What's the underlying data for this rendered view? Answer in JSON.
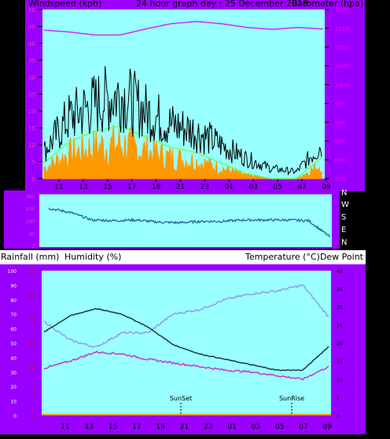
{
  "panel1": {
    "left_header": "Windspeed (kph)",
    "center_header": "24 hour graph day : 25 December 2018",
    "right_header": "Barometer (hpa)",
    "left_ticks": [
      "0",
      "5",
      "10",
      "15",
      "20",
      "25",
      "30",
      "35",
      "40",
      "45",
      "50"
    ],
    "right_ticks": [
      "975",
      "980",
      "985",
      "990",
      "995",
      "1000",
      "1005",
      "1010",
      "1015",
      "1020"
    ],
    "x_ticks": [
      "11",
      "13",
      "15",
      "17",
      "19",
      "21",
      "23",
      "01",
      "03",
      "05",
      "07",
      "09"
    ]
  },
  "panel2": {
    "left_ticks": [
      "360",
      "270",
      "180",
      "90",
      "0"
    ],
    "dir_labels": [
      "N",
      "W",
      "S",
      "E",
      "N"
    ]
  },
  "panel3": {
    "left_header": "Rainfall (mm)",
    "left_header2": "Humidity (%)",
    "right_header": "Temperature (°C)Dew Point (°C)",
    "humidity_ticks": [
      "0",
      "10",
      "20",
      "30",
      "40",
      "50",
      "60",
      "70",
      "80",
      "90",
      "100"
    ],
    "rain_ticks": [
      "0",
      "5",
      "10",
      "15",
      "20",
      "25",
      "30"
    ],
    "temp_ticks": [
      "0",
      "5",
      "10",
      "15",
      "20",
      "25",
      "30",
      "35",
      "40"
    ],
    "x_ticks": [
      "11",
      "13",
      "15",
      "17",
      "19",
      "21",
      "23",
      "01",
      "03",
      "05",
      "07",
      "09"
    ],
    "sunset_label": "SunSet",
    "sunrise_label": "SunRise"
  },
  "colors": {
    "frame": "#9900ff",
    "plot_bg": "#99ffff",
    "gust": "#000000",
    "wind_avg": "#ff9900",
    "wind_green": "#66ff66",
    "barometer": "#cc33ff",
    "direction": "#1f5f8f",
    "temperature": "#1a3a3a",
    "dew_point": "#cc33cc",
    "humidity": "#9999ee",
    "left_tick": "#ff33cc",
    "right_tick": "#ff00ff",
    "rain_tick": "#ff0000"
  },
  "chart_data": [
    {
      "type": "line",
      "title": "24 hour graph day : 25 December 2018",
      "xlabel": "",
      "ylabel": "Windspeed (kph)",
      "y2label": "Barometer (hpa)",
      "x": [
        "11",
        "13",
        "15",
        "17",
        "19",
        "21",
        "23",
        "01",
        "03",
        "05",
        "07",
        "09"
      ],
      "ylim": [
        0,
        50
      ],
      "y2lim": [
        975,
        1020
      ],
      "series": [
        {
          "name": "Windspeed gust",
          "values": [
            8,
            18,
            22,
            25,
            20,
            16,
            14,
            10,
            6,
            3,
            2,
            10
          ]
        },
        {
          "name": "Windspeed average",
          "values": [
            3,
            7,
            9,
            10,
            8,
            6,
            5,
            3,
            1,
            0,
            0,
            4
          ]
        },
        {
          "name": "Barometer (hpa)",
          "axis": "right",
          "values": [
            1014.5,
            1014,
            1013.2,
            1013.2,
            1014.8,
            1016.2,
            1016.8,
            1016.2,
            1015.2,
            1014.7,
            1015.2,
            1014.8
          ]
        }
      ]
    },
    {
      "type": "line",
      "ylabel": "Wind direction",
      "ylim": [
        0,
        360
      ],
      "x": [
        "10",
        "11",
        "13",
        "15",
        "17",
        "19",
        "21",
        "23",
        "01",
        "03",
        "05",
        "07",
        "08",
        "09"
      ],
      "series": [
        {
          "name": "Wind direction",
          "values": [
            270,
            240,
            185,
            180,
            185,
            170,
            165,
            175,
            175,
            185,
            185,
            185,
            180,
            60
          ]
        }
      ]
    },
    {
      "type": "line",
      "x": [
        "11",
        "13",
        "15",
        "17",
        "19",
        "21",
        "23",
        "01",
        "03",
        "05",
        "07",
        "09"
      ],
      "ylabel": "Humidity (%)",
      "y2label": "Temperature (°C)Dew Point (°C)",
      "ylim": [
        0,
        100
      ],
      "y2lim": [
        0,
        40
      ],
      "series": [
        {
          "name": "Temperature (°C)",
          "axis": "right",
          "values": [
            23,
            27.5,
            29.5,
            28,
            24.5,
            19.5,
            17,
            15.5,
            14,
            12.5,
            12.5,
            19
          ]
        },
        {
          "name": "Dew Point (°C)",
          "axis": "right",
          "values": [
            13,
            15,
            17.5,
            17,
            15.5,
            14.5,
            13.5,
            12.5,
            12,
            11,
            10,
            13.5
          ]
        },
        {
          "name": "Humidity (%)",
          "values": [
            65,
            52,
            47,
            57,
            57,
            70,
            73,
            80,
            84,
            86,
            90,
            68
          ]
        }
      ],
      "annotations": [
        "SunSet",
        "SunRise"
      ]
    }
  ]
}
